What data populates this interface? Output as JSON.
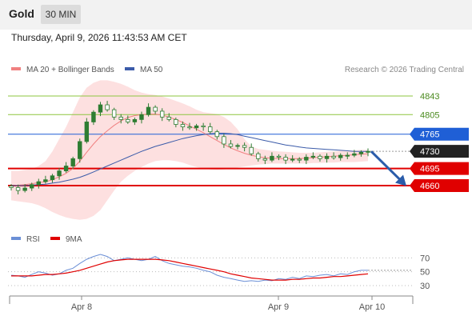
{
  "header": {
    "asset": "Gold",
    "timeframe": "30 MIN",
    "timestamp": "Thursday, April 9, 2026 11:43:53 AM CET"
  },
  "colors": {
    "ma20": "#f08080",
    "ma50": "#3b5ba9",
    "band_fill": "#fde0e0",
    "green": "#8dc63f",
    "blue": "#1f5fd6",
    "red": "#e00000",
    "dark": "#222222",
    "candle": "#2e7d32",
    "rsi": "#6b8fd6",
    "rsi_ma": "#e00000"
  },
  "chart_data": [
    {
      "type": "line",
      "title": "",
      "legend": [
        {
          "label": "MA 20 + Bollinger Bands",
          "color": "#f08080"
        },
        {
          "label": "MA 50",
          "color": "#3b5ba9"
        }
      ],
      "credit": "Research © 2026 Trading Central",
      "x_ticks": [
        "Apr 8",
        "Apr 9",
        "Apr 10"
      ],
      "y_levels": [
        {
          "label": "4843",
          "value": 4843,
          "style": "green-line"
        },
        {
          "label": "4805",
          "value": 4805,
          "style": "green-line"
        },
        {
          "label": "4765",
          "value": 4765,
          "style": "blue-tag"
        },
        {
          "label": "4730",
          "value": 4730,
          "style": "price-tag"
        },
        {
          "label": "4695",
          "value": 4695,
          "style": "red-tag"
        },
        {
          "label": "4660",
          "value": 4660,
          "style": "red-tag"
        }
      ],
      "price_close": [
        4656,
        4650,
        4655,
        4662,
        4668,
        4672,
        4680,
        4690,
        4700,
        4715,
        4750,
        4790,
        4810,
        4825,
        4815,
        4800,
        4795,
        4790,
        4795,
        4805,
        4820,
        4812,
        4800,
        4795,
        4785,
        4780,
        4778,
        4782,
        4780,
        4770,
        4760,
        4745,
        4740,
        4742,
        4738,
        4725,
        4715,
        4712,
        4720,
        4718,
        4712,
        4714,
        4712,
        4718,
        4720,
        4715,
        4720,
        4717,
        4722,
        4722,
        4725,
        4728,
        4730
      ],
      "ma20": [
        4660,
        4661,
        4662,
        4664,
        4666,
        4668,
        4672,
        4678,
        4685,
        4695,
        4710,
        4728,
        4745,
        4760,
        4772,
        4783,
        4792,
        4799,
        4803,
        4805,
        4806,
        4806,
        4804,
        4800,
        4795,
        4789,
        4782,
        4775,
        4768,
        4760,
        4752,
        4744,
        4737,
        4731,
        4726,
        4722,
        4719,
        4717,
        4716,
        4715,
        4715,
        4715,
        4715,
        4716,
        4717,
        4718,
        4719,
        4720,
        4721,
        4722,
        4723,
        4724,
        4725
      ],
      "ma50": [
        4660,
        4660,
        4660,
        4661,
        4662,
        4663,
        4665,
        4667,
        4670,
        4673,
        4677,
        4682,
        4688,
        4694,
        4700,
        4706,
        4712,
        4718,
        4724,
        4730,
        4735,
        4740,
        4744,
        4748,
        4752,
        4756,
        4759,
        4762,
        4764,
        4766,
        4767,
        4767,
        4766,
        4764,
        4761,
        4758,
        4755,
        4752,
        4749,
        4746,
        4743,
        4741,
        4739,
        4737,
        4736,
        4735,
        4734,
        4733,
        4732,
        4731,
        4730,
        4730,
        4730
      ],
      "bb_upper": [
        4690,
        4690,
        4692,
        4694,
        4700,
        4710,
        4730,
        4755,
        4780,
        4810,
        4840,
        4860,
        4870,
        4875,
        4875,
        4872,
        4868,
        4862,
        4855,
        4850,
        4847,
        4845,
        4842,
        4838,
        4833,
        4828,
        4822,
        4815,
        4810,
        4808,
        4806,
        4800,
        4790,
        4775,
        4755,
        4740,
        4735,
        4733,
        4731,
        4730,
        4729,
        4728,
        4727,
        4727,
        4727,
        4728,
        4729,
        4730,
        4731,
        4731,
        4732,
        4733,
        4733
      ],
      "bb_lower": [
        4630,
        4628,
        4626,
        4624,
        4620,
        4614,
        4606,
        4600,
        4595,
        4592,
        4590,
        4592,
        4598,
        4610,
        4630,
        4650,
        4668,
        4680,
        4690,
        4698,
        4705,
        4710,
        4712,
        4712,
        4710,
        4707,
        4702,
        4698,
        4695,
        4693,
        4692,
        4693,
        4695,
        4697,
        4699,
        4701,
        4703,
        4704,
        4705,
        4705,
        4705,
        4705,
        4705,
        4705,
        4706,
        4706,
        4707,
        4707,
        4708,
        4708,
        4708,
        4709,
        4710
      ]
    },
    {
      "type": "line",
      "title": "",
      "legend": [
        {
          "label": "RSI",
          "color": "#6b8fd6"
        },
        {
          "label": "9MA",
          "color": "#e00000"
        }
      ],
      "y_ticks": [
        "70",
        "50",
        "30"
      ],
      "ylim": [
        15,
        90
      ],
      "rsi": [
        45,
        44,
        42,
        46,
        50,
        48,
        45,
        47,
        52,
        55,
        62,
        68,
        72,
        75,
        72,
        66,
        68,
        70,
        68,
        66,
        68,
        72,
        66,
        62,
        60,
        58,
        57,
        55,
        52,
        50,
        45,
        42,
        40,
        38,
        36,
        37,
        36,
        38,
        37,
        40,
        39,
        42,
        40,
        44,
        43,
        45,
        46,
        44,
        47,
        46,
        50,
        52,
        52
      ],
      "rsi_ma": [
        44,
        44,
        44,
        44,
        45,
        46,
        46,
        47,
        48,
        50,
        52,
        55,
        58,
        61,
        64,
        66,
        67,
        68,
        68,
        68,
        68,
        68,
        67,
        66,
        64,
        62,
        60,
        58,
        56,
        54,
        52,
        50,
        47,
        45,
        43,
        41,
        40,
        39,
        38,
        38,
        38,
        39,
        39,
        40,
        41,
        41,
        42,
        43,
        43,
        44,
        45,
        46,
        47
      ]
    }
  ]
}
